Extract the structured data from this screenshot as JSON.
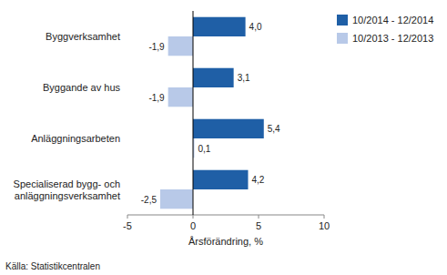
{
  "chart_data": {
    "type": "bar",
    "orientation": "horizontal",
    "categories": [
      "Byggverksamhet",
      "Byggande av hus",
      "Anläggningsarbeten",
      "Specialiserad bygg- och\nanläggningsverksamhet"
    ],
    "series": [
      {
        "name": "10/2014 - 12/2014",
        "color": "#1F5FA6",
        "values": [
          4.0,
          3.1,
          5.4,
          4.2
        ],
        "value_labels": [
          "4,0",
          "3,1",
          "5,4",
          "4,2"
        ]
      },
      {
        "name": "10/2013 - 12/2013",
        "color": "#B8C9E8",
        "values": [
          -1.9,
          -1.9,
          0.1,
          -2.5
        ],
        "value_labels": [
          "-1,9",
          "-1,9",
          "0,1",
          "-2,5"
        ]
      }
    ],
    "xlabel": "Årsförändring, %",
    "source": "Källa: Statistikcentralen",
    "xlim": [
      -5,
      10
    ],
    "xticks": [
      -5,
      0,
      5,
      10
    ],
    "grid": false,
    "legend": "right",
    "data_labels": true
  }
}
